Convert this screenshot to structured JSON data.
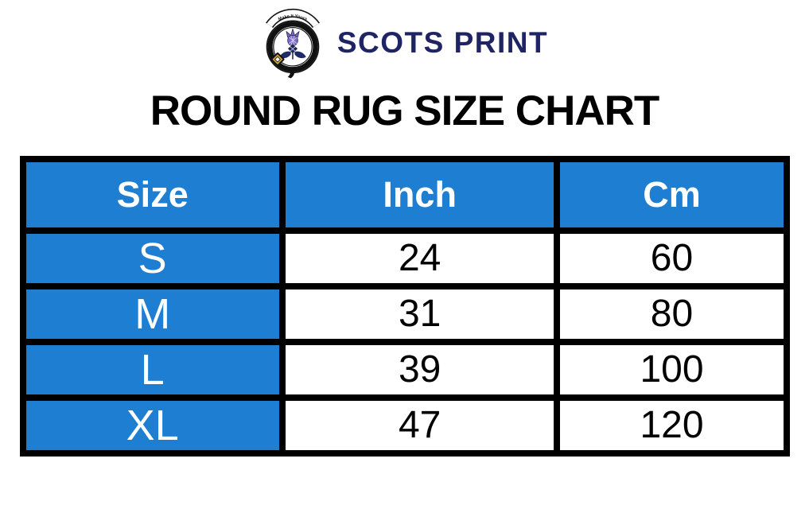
{
  "brand": {
    "name": "SCOTS PRINT",
    "motto": "Make It Yours"
  },
  "title": "ROUND RUG SIZE CHART",
  "colors": {
    "accent_blue": "#1e7fd2",
    "brand_navy": "#1f2465",
    "border_black": "#000000",
    "header_text_white": "#ffffff",
    "thistle_purple": "#7a6bcc",
    "crest_navy": "#1f2a66",
    "buckle_gold": "#c8a43d"
  },
  "table": {
    "headers": [
      "Size",
      "Inch",
      "Cm"
    ],
    "rows": [
      [
        "S",
        "24",
        "60"
      ],
      [
        "M",
        "31",
        "80"
      ],
      [
        "L",
        "39",
        "100"
      ],
      [
        "XL",
        "47",
        "120"
      ]
    ]
  },
  "chart_data": {
    "type": "table",
    "title": "ROUND RUG SIZE CHART",
    "columns": [
      "Size",
      "Inch",
      "Cm"
    ],
    "rows": [
      {
        "size": "S",
        "inch": 24,
        "cm": 60
      },
      {
        "size": "M",
        "inch": 31,
        "cm": 80
      },
      {
        "size": "L",
        "inch": 39,
        "cm": 100
      },
      {
        "size": "XL",
        "inch": 47,
        "cm": 120
      }
    ]
  }
}
